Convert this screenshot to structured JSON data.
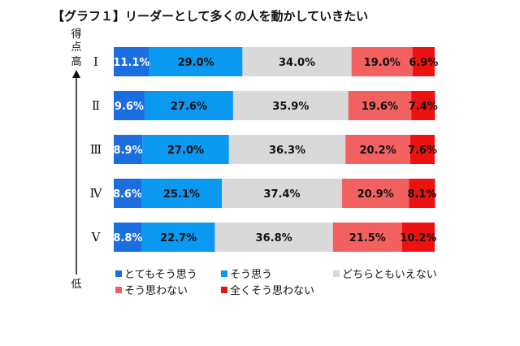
{
  "chart_data": {
    "type": "bar",
    "orientation": "horizontal",
    "stacked": true,
    "title": "【グラフ１】リーダーとして多くの人を動かしていきたい",
    "axis_side": {
      "top_label_line1": "得",
      "top_label_line2": "点",
      "high": "高",
      "low": "低"
    },
    "categories": [
      "Ⅰ",
      "Ⅱ",
      "Ⅲ",
      "Ⅳ",
      "Ⅴ"
    ],
    "series": [
      {
        "name": "とてもそう思う",
        "color": "#1B6EE0",
        "text_color": "#ffffff",
        "values": [
          11.1,
          9.6,
          8.9,
          8.6,
          8.8
        ]
      },
      {
        "name": "そう思う",
        "color": "#0B98F0",
        "text_color": "#111111",
        "values": [
          29.0,
          27.6,
          27.0,
          25.1,
          22.7
        ]
      },
      {
        "name": "どちらともいえない",
        "color": "#D9D9D9",
        "text_color": "#111111",
        "values": [
          34.0,
          35.9,
          36.3,
          37.4,
          36.8
        ]
      },
      {
        "name": "そう思わない",
        "color": "#F2605F",
        "text_color": "#111111",
        "values": [
          19.0,
          19.6,
          20.2,
          20.9,
          21.5
        ]
      },
      {
        "name": "全くそう思わない",
        "color": "#EE1111",
        "text_color": "#111111",
        "values": [
          6.9,
          7.4,
          7.6,
          8.1,
          10.2
        ]
      }
    ],
    "value_format": "%",
    "legend_position": "bottom"
  }
}
